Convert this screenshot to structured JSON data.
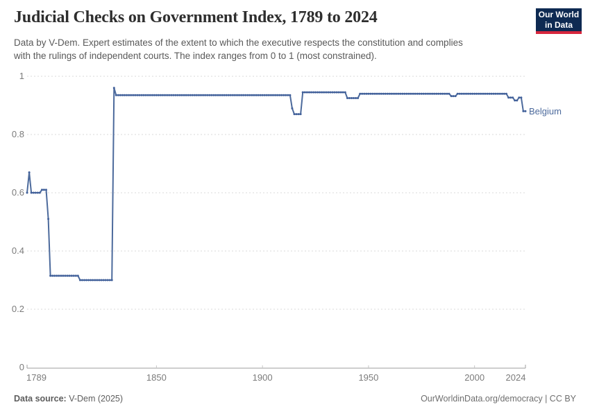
{
  "header": {
    "title": "Judicial Checks on Government Index, 1789 to 2024",
    "subtitle_line1": "Data by V-Dem. Expert estimates of the extent to which the executive respects the constitution and complies",
    "subtitle_line2": "with the rulings of independent courts. The index ranges from 0 to 1 (most constrained).",
    "logo": {
      "line1": "Our World",
      "line2": "in Data",
      "bg_color": "#0E2A52",
      "accent_color": "#D7263D"
    }
  },
  "footer": {
    "source_label": "Data source:",
    "source_value": " V-Dem (2025)",
    "rights": "OurWorldinData.org/democracy | CC BY"
  },
  "chart_data": {
    "type": "line",
    "title": "Judicial Checks on Government Index, 1789 to 2024",
    "entity": "Belgium",
    "line_color": "#4C6A9C",
    "marker_color": "#41609A",
    "label_color": "#4C6A9C",
    "grid": "horizontal dashed",
    "legend_position": "label at end of line",
    "xlim": [
      1789,
      2024
    ],
    "ylim": [
      0,
      1
    ],
    "x_ticks": [
      1789,
      1850,
      1900,
      1950,
      2000,
      2024
    ],
    "y_ticks": [
      0,
      0.2,
      0.4,
      0.6,
      0.8,
      1
    ],
    "series": [
      {
        "name": "Belgium",
        "interpolation": "step-hold: value persists from each breakpoint year until the next; one data point per year",
        "breakpoints": [
          [
            1789,
            0.6
          ],
          [
            1790,
            0.67
          ],
          [
            1791,
            0.6
          ],
          [
            1796,
            0.61
          ],
          [
            1799,
            0.51
          ],
          [
            1800,
            0.315
          ],
          [
            1814,
            0.3
          ],
          [
            1830,
            0.96
          ],
          [
            1831,
            0.935
          ],
          [
            1914,
            0.89
          ],
          [
            1915,
            0.87
          ],
          [
            1919,
            0.945
          ],
          [
            1940,
            0.925
          ],
          [
            1946,
            0.94
          ],
          [
            1989,
            0.932
          ],
          [
            1992,
            0.94
          ],
          [
            2016,
            0.927
          ],
          [
            2019,
            0.917
          ],
          [
            2021,
            0.927
          ],
          [
            2023,
            0.88
          ],
          [
            2024,
            0.88
          ]
        ]
      }
    ]
  }
}
